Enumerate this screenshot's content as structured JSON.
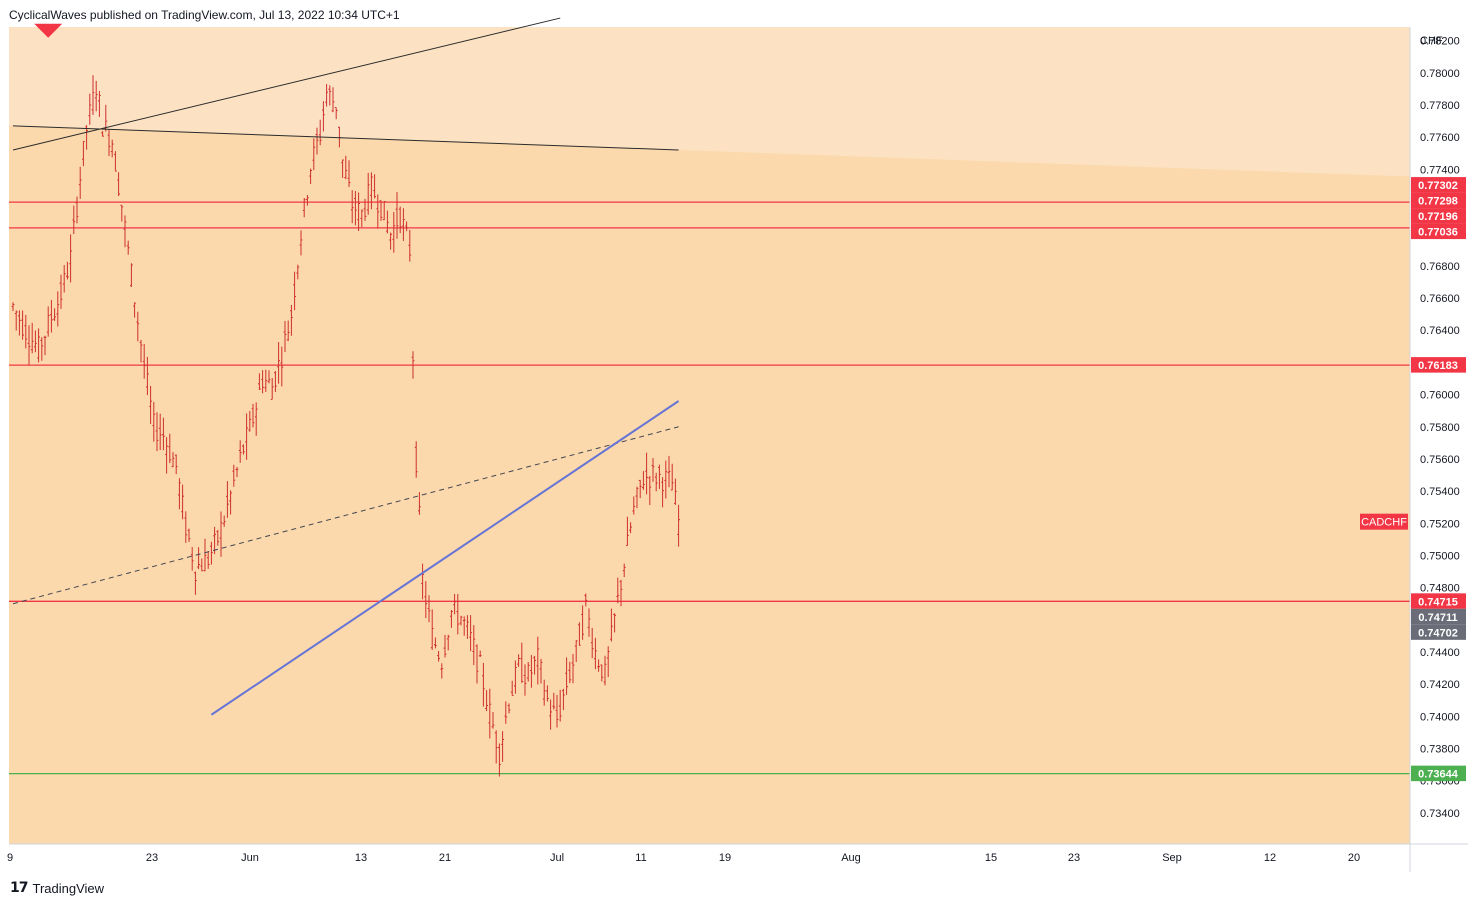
{
  "header": {
    "attribution": "CyclicalWaves published on TradingView.com, Jul 13, 2022 10:34 UTC+1"
  },
  "footer": {
    "logo_icon": "tradingview-logo-icon",
    "brand": "TradingView"
  },
  "colors": {
    "background": "#fbd9ac",
    "background_upper": "#fce2c2",
    "candle": "#cf2e2e",
    "resistance_line": "#f23645",
    "support_line": "#4caf50",
    "trend_line": "#6674d6",
    "channel_line": "#434651",
    "marker": "#f23645",
    "label_gray": "#6a6d78"
  },
  "chart_data": {
    "type": "ohlc",
    "symbol": "CADCHF",
    "currency": "CHF",
    "ylim": [
      0.733,
      0.7834
    ],
    "y_ticks": [
      "0.78200",
      "0.78000",
      "0.77800",
      "0.77600",
      "0.77400",
      "0.77200",
      "0.77000",
      "0.76800",
      "0.76600",
      "0.76400",
      "0.76200",
      "0.76000",
      "0.75800",
      "0.75600",
      "0.75400",
      "0.75200",
      "0.75000",
      "0.74800",
      "0.74600",
      "0.74400",
      "0.74200",
      "0.74000",
      "0.73800",
      "0.73600",
      "0.73400"
    ],
    "x_ticks": [
      "9",
      "23",
      "Jun",
      "13",
      "21",
      "Jul",
      "11",
      "19",
      "Aug",
      "15",
      "23",
      "Sep",
      "12",
      "20"
    ],
    "price_lines": [
      {
        "value": 0.77196,
        "label": "0.77196",
        "color": "#f23645"
      },
      {
        "value": 0.77036,
        "label": "0.77036",
        "color": "#f23645"
      },
      {
        "value": 0.76183,
        "label": "0.76183",
        "color": "#f23645"
      },
      {
        "value": 0.74715,
        "label": "0.74715",
        "color": "#f23645"
      },
      {
        "value": 0.73644,
        "label": "0.73644",
        "color": "#4caf50"
      }
    ],
    "price_labels": [
      {
        "value": 0.77302,
        "label": "0.77302",
        "color": "#f23645"
      },
      {
        "value": 0.77298,
        "label": "0.77298",
        "color": "#f23645"
      },
      {
        "value": 0.74711,
        "label": "0.74711",
        "color": "#6a6d78"
      },
      {
        "value": 0.74702,
        "label": "0.74702",
        "color": "#6a6d78"
      }
    ],
    "symbol_label": "CADCHF",
    "current_price": 0.7521,
    "price_path": [
      [
        0,
        0.7655
      ],
      [
        4,
        0.764
      ],
      [
        8,
        0.7628
      ],
      [
        12,
        0.7648
      ],
      [
        15,
        0.7662
      ],
      [
        18,
        0.7685
      ],
      [
        21,
        0.7735
      ],
      [
        23,
        0.7765
      ],
      [
        26,
        0.7792
      ],
      [
        28,
        0.7768
      ],
      [
        31,
        0.7758
      ],
      [
        34,
        0.7718
      ],
      [
        38,
        0.766
      ],
      [
        41,
        0.7618
      ],
      [
        44,
        0.758
      ],
      [
        47,
        0.7575
      ],
      [
        51,
        0.7555
      ],
      [
        54,
        0.7518
      ],
      [
        57,
        0.7492
      ],
      [
        61,
        0.7498
      ],
      [
        64,
        0.751
      ],
      [
        67,
        0.753
      ],
      [
        71,
        0.756
      ],
      [
        75,
        0.7585
      ],
      [
        78,
        0.761
      ],
      [
        81,
        0.7605
      ],
      [
        84,
        0.7625
      ],
      [
        87,
        0.765
      ],
      [
        90,
        0.77
      ],
      [
        93,
        0.7742
      ],
      [
        96,
        0.7762
      ],
      [
        98,
        0.7788
      ],
      [
        101,
        0.778
      ],
      [
        103,
        0.7745
      ],
      [
        106,
        0.7718
      ],
      [
        109,
        0.7712
      ],
      [
        112,
        0.7728
      ],
      [
        115,
        0.7718
      ],
      [
        118,
        0.77
      ],
      [
        121,
        0.7712
      ],
      [
        124,
        0.769
      ],
      [
        126,
        0.756
      ],
      [
        128,
        0.7485
      ],
      [
        131,
        0.745
      ],
      [
        134,
        0.7435
      ],
      [
        137,
        0.7465
      ],
      [
        140,
        0.7462
      ],
      [
        143,
        0.7448
      ],
      [
        146,
        0.743
      ],
      [
        149,
        0.7402
      ],
      [
        152,
        0.7378
      ],
      [
        155,
        0.741
      ],
      [
        158,
        0.743
      ],
      [
        161,
        0.7425
      ],
      [
        164,
        0.7435
      ],
      [
        167,
        0.741
      ],
      [
        170,
        0.7398
      ],
      [
        173,
        0.742
      ],
      [
        176,
        0.744
      ],
      [
        179,
        0.7468
      ],
      [
        182,
        0.744
      ],
      [
        185,
        0.7425
      ],
      [
        188,
        0.746
      ],
      [
        191,
        0.7495
      ],
      [
        194,
        0.7528
      ],
      [
        197,
        0.7548
      ],
      [
        200,
        0.755
      ],
      [
        203,
        0.7548
      ],
      [
        206,
        0.7545
      ],
      [
        208,
        0.7521
      ]
    ],
    "drawings": [
      {
        "type": "channel-line",
        "from": {
          "bar": 0,
          "value": 0.7752
        },
        "to": {
          "bar": 171,
          "value": 0.7834
        }
      },
      {
        "type": "channel-line",
        "from": {
          "bar": 0,
          "value": 0.7767
        },
        "to": {
          "bar": 208,
          "value": 0.7752
        }
      },
      {
        "type": "dashed-channel-line",
        "from": {
          "bar": 0,
          "value": 0.747
        },
        "to": {
          "bar": 208,
          "value": 0.758
        }
      },
      {
        "type": "trend-line",
        "from": {
          "bar": 62,
          "value": 0.7401
        },
        "to": {
          "bar": 208,
          "value": 0.7596
        }
      },
      {
        "type": "triangle-marker",
        "at": {
          "bar": 11,
          "value": 0.7828
        }
      }
    ]
  }
}
